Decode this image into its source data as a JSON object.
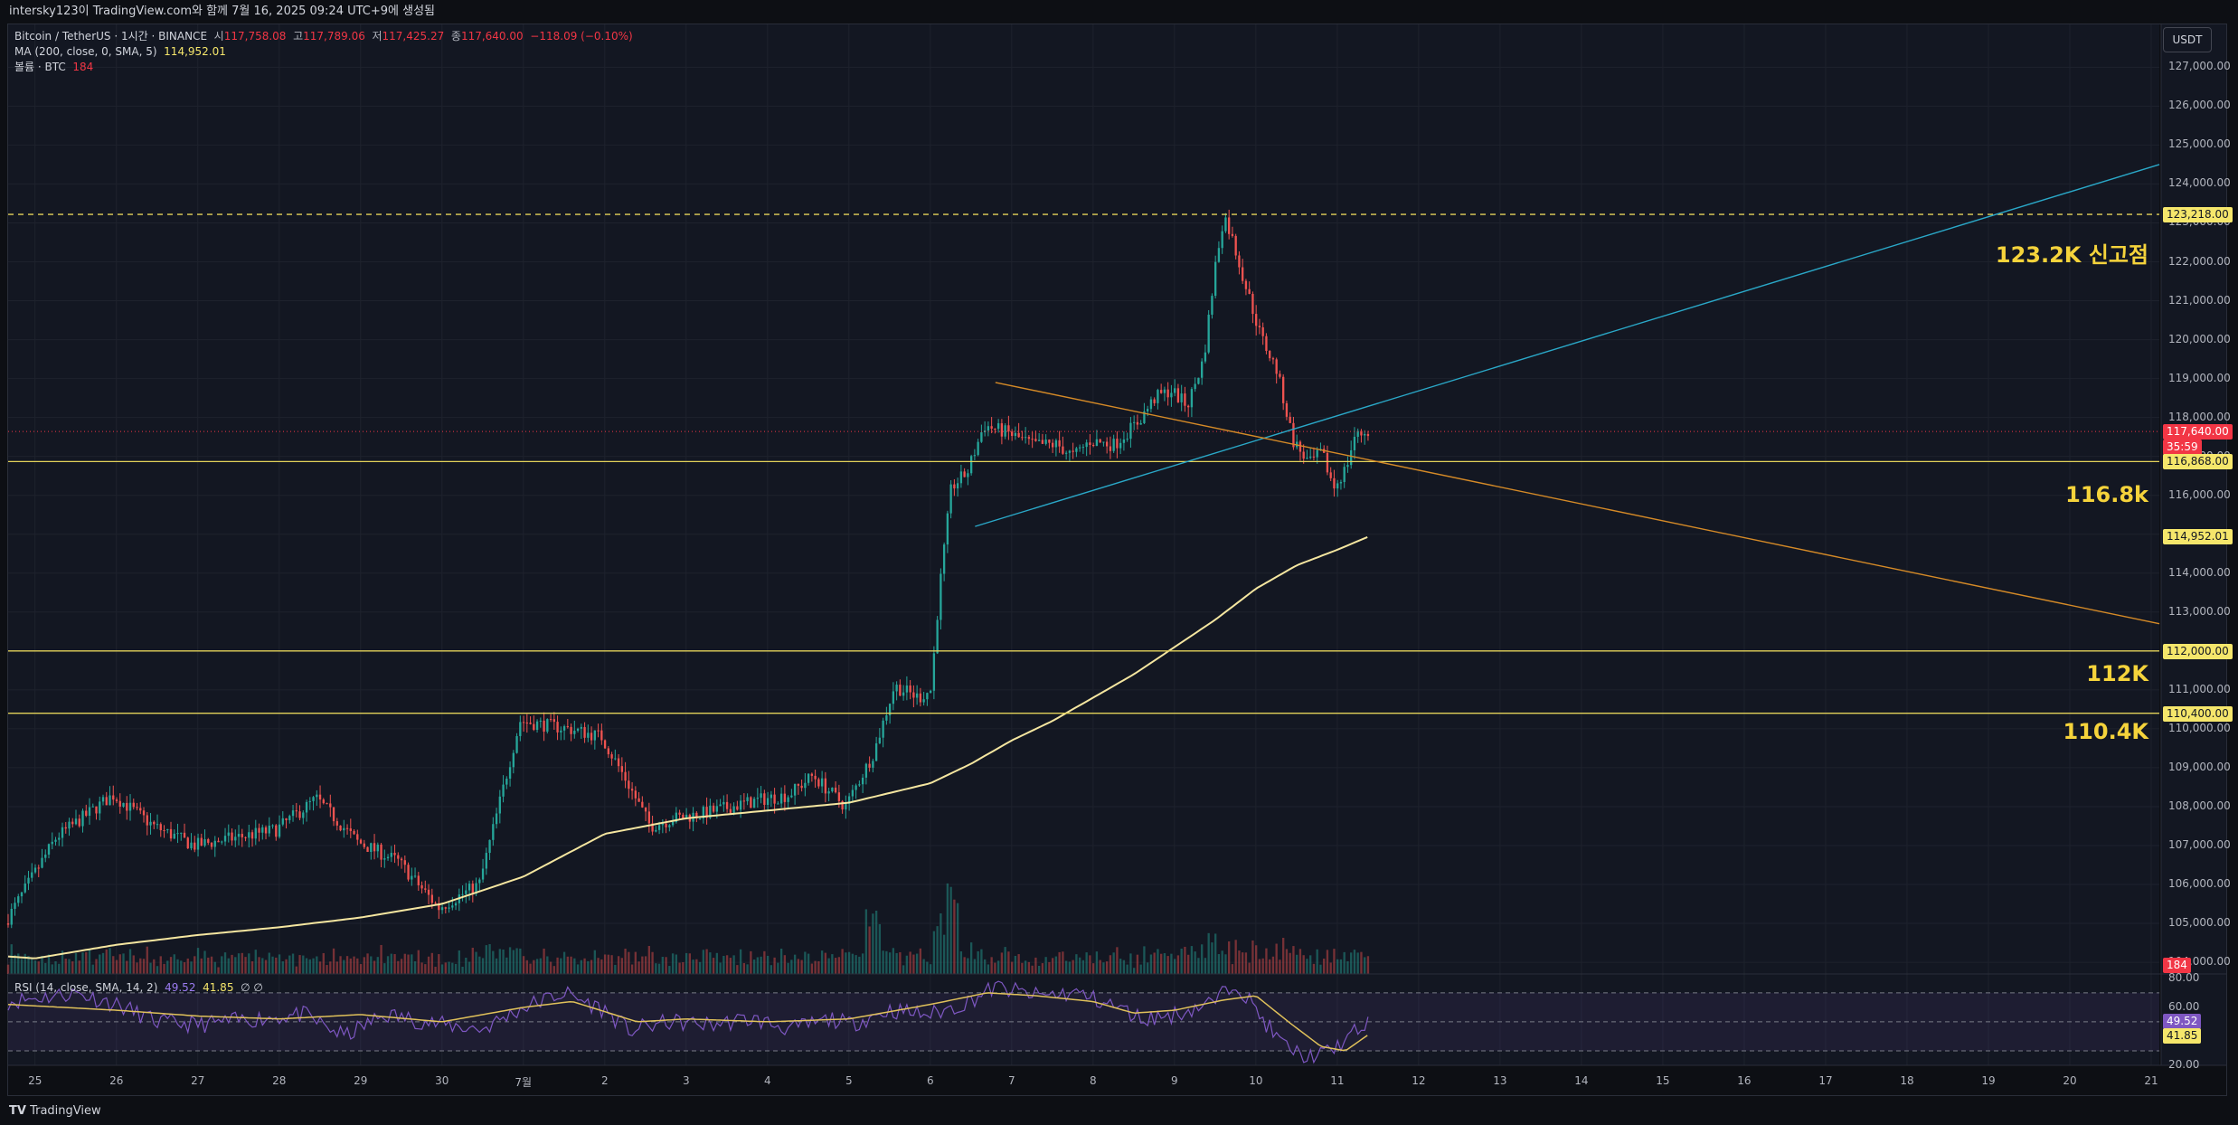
{
  "header": {
    "caption": "intersky123이 TradingView.com와 함께 7월 16, 2025 09:24 UTC+9에 생성됨"
  },
  "legend": {
    "symbol": "Bitcoin / TetherUS · 1시간 · BINANCE",
    "o_label": "시",
    "o_value": "117,758.08",
    "h_label": "고",
    "h_value": "117,789.06",
    "l_label": "저",
    "l_value": "117,425.27",
    "c_label": "종",
    "c_value": "117,640.00",
    "change": "−118.09 (−0.10%)",
    "ma_label": "MA (200, close, 0, SMA, 5)",
    "ma_value": "114,952.01",
    "vol_label": "볼륨 · BTC",
    "vol_value": "184"
  },
  "rsi_legend": {
    "label": "RSI (14, close, SMA, 14, 2)",
    "rsi_value": "49.52",
    "sma_value": "41.85",
    "extra": "∅ ∅"
  },
  "currency_button": "USDT",
  "footer": {
    "brand": "TradingView"
  },
  "colors": {
    "bg": "#131722",
    "grid": "#1e222d",
    "up": "#26a69a",
    "down": "#ef5350",
    "ma": "#f5e6a0",
    "level": "#e3d25a",
    "trend_blue": "#2aa8c8",
    "trend_orange": "#d58a27",
    "rsi": "#7e57c2",
    "rsi_ma": "#e0c15a",
    "annotation": "#f5d33b"
  },
  "annotations": [
    {
      "text": "123.2K 신고점",
      "price": 122300
    },
    {
      "text": "116.8k",
      "price": 116000
    },
    {
      "text": "112K",
      "price": 111400
    },
    {
      "text": "110.4K",
      "price": 109900
    }
  ],
  "price_badges": [
    {
      "value": "123,218.00",
      "price": 123218,
      "style": "yellow"
    },
    {
      "value": "117,640.00",
      "price": 117640,
      "style": "red",
      "sub": "35:59"
    },
    {
      "value": "116,868.00",
      "price": 116868,
      "style": "yellow"
    },
    {
      "value": "114,952.01",
      "price": 114952,
      "style": "yellow"
    },
    {
      "value": "112,000.00",
      "price": 112000,
      "style": "yellow"
    },
    {
      "value": "110,400.00",
      "price": 110400,
      "style": "yellow"
    }
  ],
  "volume_badge": "184",
  "rsi_badges": [
    {
      "value": "49.52",
      "rsi": 49.52,
      "style": "violet"
    },
    {
      "value": "41.85",
      "rsi": 41.85,
      "style": "yellow"
    }
  ],
  "chart_data": {
    "type": "candlestick",
    "title": "Bitcoin / TetherUS · 1시간 · BINANCE",
    "ylim": [
      103700,
      128100
    ],
    "y_ticks": [
      "104,000.00",
      "105,000.00",
      "106,000.00",
      "107,000.00",
      "108,000.00",
      "109,000.00",
      "110,000.00",
      "111,000.00",
      "112,000.00",
      "113,000.00",
      "114,000.00",
      "115,000.00",
      "116,000.00",
      "117,000.00",
      "118,000.00",
      "119,000.00",
      "120,000.00",
      "121,000.00",
      "122,000.00",
      "123,000.00",
      "124,000.00",
      "125,000.00",
      "126,000.00",
      "127,000.00"
    ],
    "y_tick_values": [
      104000,
      105000,
      106000,
      107000,
      108000,
      109000,
      110000,
      111000,
      112000,
      113000,
      114000,
      115000,
      116000,
      117000,
      118000,
      119000,
      120000,
      121000,
      122000,
      123000,
      124000,
      125000,
      126000,
      127000
    ],
    "x_tick_labels": [
      "25",
      "26",
      "27",
      "28",
      "29",
      "30",
      "7월",
      "2",
      "3",
      "4",
      "5",
      "6",
      "7",
      "8",
      "9",
      "10",
      "11",
      "12",
      "13",
      "14",
      "15",
      "16",
      "17",
      "18",
      "19",
      "20",
      "21"
    ],
    "x_tick_days": [
      0,
      1,
      2,
      3,
      4,
      5,
      6,
      7,
      8,
      9,
      10,
      11,
      12,
      13,
      14,
      15,
      16,
      17,
      18,
      19,
      20,
      21,
      22,
      23,
      24,
      25,
      26
    ],
    "x_domain_days": [
      -0.33,
      26.1
    ],
    "price_path_days": [
      -0.33,
      0.3,
      1.0,
      1.5,
      2.0,
      2.5,
      3.0,
      3.5,
      4.0,
      4.5,
      5.0,
      5.5,
      6.0,
      6.6,
      7.0,
      7.3,
      7.6,
      7.9,
      8.2,
      8.6,
      9.0,
      9.3,
      9.6,
      10.0,
      10.2,
      10.35,
      10.6,
      10.9,
      11.05,
      11.15,
      11.3,
      11.5,
      11.7,
      12.0,
      12.3,
      12.6,
      12.8,
      13.0,
      13.3,
      13.6,
      13.8,
      14.0,
      14.2,
      14.4,
      14.55,
      14.65,
      14.75,
      14.9,
      15.1,
      15.3,
      15.5,
      15.7,
      15.85,
      16.0,
      16.15,
      16.25,
      16.4
    ],
    "price_path_values": [
      105000,
      107200,
      108300,
      107500,
      107000,
      107200,
      107400,
      108200,
      107100,
      106600,
      105400,
      106000,
      110200,
      110000,
      109800,
      108700,
      107500,
      107700,
      107800,
      108000,
      108200,
      108300,
      108800,
      108000,
      108800,
      109400,
      111100,
      110800,
      111000,
      113500,
      116200,
      116600,
      117800,
      117600,
      117300,
      117300,
      117000,
      117400,
      117300,
      117900,
      118500,
      118700,
      118300,
      119500,
      122000,
      123218,
      122600,
      121500,
      120100,
      119200,
      117400,
      116800,
      117100,
      116200,
      116700,
      117500,
      117640
    ],
    "ma200_days": [
      -0.33,
      0,
      1,
      2,
      3,
      4,
      5,
      6,
      7,
      8,
      9,
      10,
      11,
      11.5,
      12,
      12.5,
      13,
      13.5,
      14,
      14.5,
      15,
      15.5,
      16,
      16.4
    ],
    "ma200_values": [
      104150,
      104100,
      104450,
      104700,
      104900,
      105150,
      105500,
      106200,
      107300,
      107700,
      107900,
      108100,
      108600,
      109100,
      109700,
      110200,
      110800,
      111400,
      112100,
      112800,
      113600,
      114200,
      114600,
      114952
    ],
    "levels": [
      {
        "price": 123218,
        "style": "dashed"
      },
      {
        "price": 116868,
        "style": "solid"
      },
      {
        "price": 112000,
        "style": "solid"
      },
      {
        "price": 110400,
        "style": "solid"
      }
    ],
    "trendlines": [
      {
        "name": "ascending",
        "from": [
          11.55,
          115200
        ],
        "to": [
          26.1,
          124500
        ]
      },
      {
        "name": "descending",
        "from": [
          11.8,
          118900
        ],
        "to": [
          26.1,
          112700
        ]
      }
    ],
    "rsi": {
      "ylim": [
        20,
        83
      ],
      "ticks": [
        80,
        60,
        20
      ],
      "tick_labels": [
        "80.00",
        "60.00",
        "20.00"
      ],
      "bands": [
        70,
        50,
        30
      ],
      "rsi_path_days": [
        -0.33,
        0.5,
        1.0,
        1.5,
        2.0,
        2.7,
        3.3,
        3.8,
        4.3,
        5.0,
        5.5,
        6.0,
        6.5,
        7.0,
        7.3,
        7.8,
        8.3,
        8.8,
        9.3,
        9.8,
        10.0,
        10.5,
        11.0,
        11.4,
        11.8,
        12.3,
        12.8,
        13.3,
        13.6,
        14.0,
        14.5,
        14.75,
        15.0,
        15.3,
        15.6,
        15.9,
        16.2,
        16.4
      ],
      "rsi_path_values": [
        64,
        70,
        62,
        50,
        48,
        52,
        55,
        40,
        55,
        48,
        45,
        60,
        70,
        58,
        44,
        50,
        48,
        52,
        45,
        52,
        48,
        58,
        55,
        62,
        74,
        68,
        70,
        60,
        52,
        55,
        64,
        78,
        58,
        36,
        25,
        29,
        42,
        49.52
      ],
      "sma_path_days": [
        -0.33,
        1.0,
        2.0,
        3.0,
        4.0,
        5.0,
        6.0,
        6.6,
        7.4,
        8.0,
        9.0,
        10.0,
        11.0,
        11.7,
        12.3,
        13.0,
        13.5,
        14.0,
        14.6,
        15.0,
        15.4,
        15.8,
        16.1,
        16.4
      ],
      "sma_path_values": [
        62,
        58,
        54,
        52,
        55,
        50,
        60,
        64,
        50,
        52,
        50,
        52,
        62,
        70,
        68,
        64,
        56,
        58,
        65,
        68,
        50,
        33,
        30,
        41.85
      ]
    }
  }
}
